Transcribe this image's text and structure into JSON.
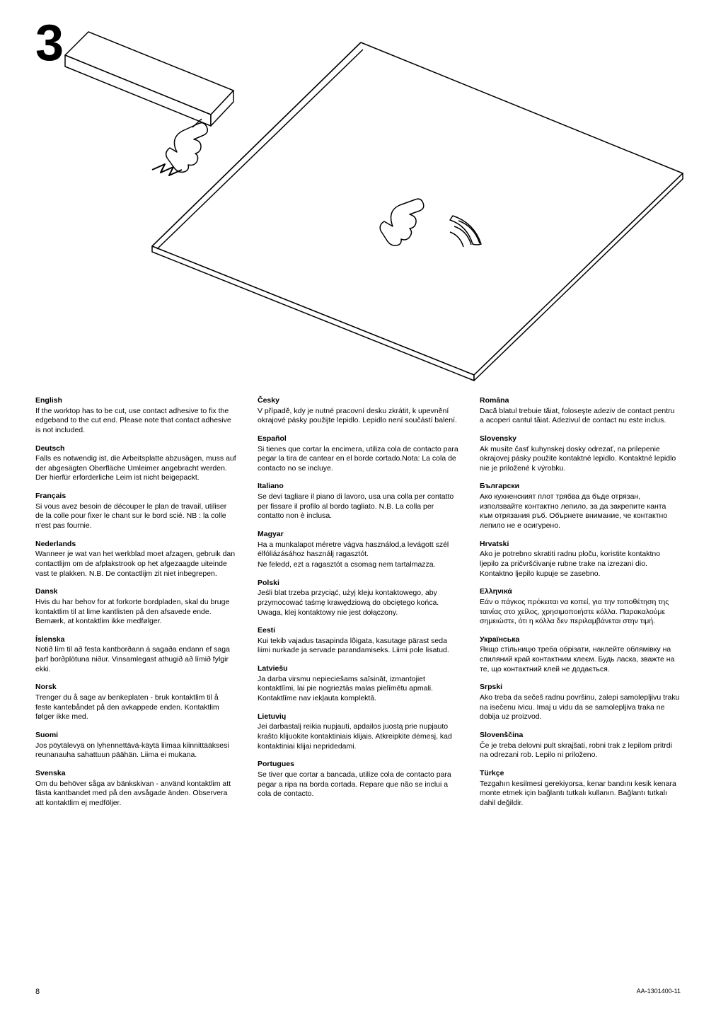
{
  "figure_number": "3",
  "page_number": "8",
  "doc_id": "AA-1301400-11",
  "illustration": {
    "stroke": "#000000",
    "stroke_width_thin": 1.2,
    "stroke_width_thick": 2,
    "fill": "#ffffff"
  },
  "languages": [
    {
      "name": "English",
      "text": "If the worktop has to be cut, use contact adhesive to fix the edgeband to the cut end. Please note that contact adhesive is not included."
    },
    {
      "name": "Deutsch",
      "text": "Falls es notwendig ist, die Arbeitsplatte abzusägen, muss auf der abgesägten Oberfläche Umleimer angebracht werden. Der hierfür erforderliche Leim ist nicht beigepackt."
    },
    {
      "name": "Français",
      "text": "Si vous avez besoin de découper le plan de travail, utiliser de la colle pour fixer le chant sur le bord scié. NB : la colle n'est pas fournie."
    },
    {
      "name": "Nederlands",
      "text": "Wanneer je wat van het werkblad moet afzagen, gebruik dan contactlijm om de afplakstrook op het afgezaagde uiteinde vast te plakken. N.B. De contactlijm zit niet inbegrepen."
    },
    {
      "name": "Dansk",
      "text": "Hvis du har behov for at forkorte bordpladen, skal du bruge kontaktlim til at lime kantlisten på den afsavede ende. Bemærk, at kontaktlim ikke medfølger."
    },
    {
      "name": "Íslenska",
      "text": "Notið lím til að festa kantborðann á sagaða endann ef saga þarf borðplötuna niður. Vinsamlegast athugið að límið fylgir ekki."
    },
    {
      "name": "Norsk",
      "text": "Trenger du å sage av benkeplaten - bruk kontaktlim til å feste kantebåndet på den avkappede enden. Kontaktlim følger ikke med."
    },
    {
      "name": "Suomi",
      "text": "Jos pöytälevyä on lyhennettävä-käytä liimaa kiinnittääksesi reunanauha sahattuun päähän. Liima ei mukana."
    },
    {
      "name": "Svenska",
      "text": "Om du behöver såga av bänkskivan - använd kontaktlim att fästa kantbandet med på den avsågade änden. Observera att kontaktlim ej medföljer."
    },
    {
      "name": "Česky",
      "text": "V případě, kdy je nutné pracovní desku zkrátit, k upevnění okrajové pásky použijte lepidlo. Lepidlo není součástí balení."
    },
    {
      "name": "Español",
      "text": "Si tienes que cortar la encimera, utiliza cola de contacto para pegar la tira de cantear en el borde cortado.Nota: La cola de contacto no se incluye."
    },
    {
      "name": "Italiano",
      "text": "Se devi tagliare il piano di lavoro, usa una colla per contatto per fissare il profilo al bordo tagliato. N.B. La colla per contatto non è inclusa."
    },
    {
      "name": "Magyar",
      "text": "Ha a munkalapot méretre vágva használod,a levágott szél élfóliázásához használj ragasztót.",
      "text2": "Ne feledd, ezt a ragasztót a csomag nem tartalmazza."
    },
    {
      "name": "Polski",
      "text": "Jeśli blat trzeba przyciąć, użyj kleju kontaktowego, aby przymocować taśmę krawędziową do obciętego końca. Uwaga, klej kontaktowy nie jest dołączony."
    },
    {
      "name": "Eesti",
      "text": "Kui tekib vajadus tasapinda lõigata, kasutage pärast seda liimi nurkade ja servade parandamiseks. Liimi pole lisatud."
    },
    {
      "name": "Latviešu",
      "text": "Ja darba virsmu nepieciešams saīsināt, izmantojiet kontaktlīmi, lai pie nogrieztās malas pielīmētu apmali. Kontaktlīme nav iekļauta komplektā."
    },
    {
      "name": "Lietuvių",
      "text": "Jei darbastalį reikia nupjauti, apdailos juostą prie nupjauto krašto klijuokite kontaktiniais klijais. Atkreipkite dėmesį, kad kontaktiniai klijai nepridedami."
    },
    {
      "name": "Portugues",
      "text": "Se tiver que cortar a bancada, utilize cola de contacto para pegar a ripa na borda cortada. Repare que não se inclui a cola de contacto."
    },
    {
      "name": "Româna",
      "text": "Dacă blatul trebuie tăiat, foloseşte adeziv de contact pentru a acoperi cantul tăiat. Adezivul de contact nu este inclus."
    },
    {
      "name": "Slovensky",
      "text": "Ak musíte časť kuhynskej dosky odrezať, na prilepenie okrajovej pásky použite kontaktné lepidlo. Kontaktné lepidlo nie je priložené k výrobku."
    },
    {
      "name": "Български",
      "text": "Ако кухненският плот трябва да бъде отрязан, използвайте контактно лепило, за да закрепите канта към отрязания ръб. Обърнете внимание, че контактно лепило не е осигурено."
    },
    {
      "name": "Hrvatski",
      "text": "Ako je potrebno skratiti radnu ploču, koristite kontaktno ljepilo za pričvršćivanje rubne trake na izrezani dio. Kontaktno ljepilo kupuje se zasebno."
    },
    {
      "name": "Ελληνικά",
      "text": "Εάν ο πάγκος πρόκειται να κοπεί, για την τοποθέτηση της ταινίας στο χείλος, χρησιμοποιήστε κόλλα. Παρακαλούμε σημειώστε, ότι η κόλλα δεν περιλαμβάνεται στην τιμή."
    },
    {
      "name": "Українська",
      "text": "Якщо стільницю треба обрізати, наклейте облямівку на спиляний край контактним клеєм. Будь ласка, зважте на те, що контактний клей не додається."
    },
    {
      "name": "Srpski",
      "text": "Ako treba da sečeš radnu površinu, zalepi samolepljivu traku na isečenu ivicu. Imaj u vidu da se samolepljiva traka ne dobija uz proizvod."
    },
    {
      "name": "Slovenščina",
      "text": "Če je treba delovni pult skrajšati, robni trak z lepilom pritrdi na odrezani rob. Lepilo ni priloženo."
    },
    {
      "name": "Türkçe",
      "text": "Tezgahın kesilmesi gerekiyorsa, kenar bandını kesik kenara monte etmek için bağlantı tutkalı kullanın. Bağlantı tutkalı dahil değildir."
    }
  ]
}
